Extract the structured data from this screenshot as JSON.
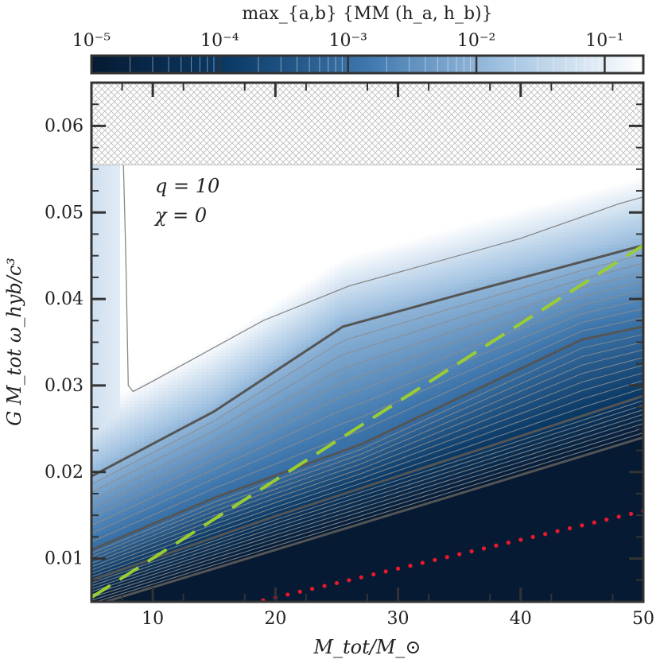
{
  "chart_data": {
    "type": "heatmap",
    "title": "",
    "xlabel": "M_tot/M_⊙",
    "ylabel": "G M_tot ω_hyb/c³",
    "xlim": [
      5,
      50
    ],
    "ylim": [
      0.005,
      0.065
    ],
    "xticks": [
      10,
      20,
      30,
      40,
      50
    ],
    "yticks": [
      0.01,
      0.02,
      0.03,
      0.04,
      0.05,
      0.06
    ],
    "xtick_labels": [
      "10",
      "20",
      "30",
      "40",
      "50"
    ],
    "ytick_labels": [
      "0.01",
      "0.02",
      "0.03",
      "0.04",
      "0.05",
      "0.06"
    ],
    "grid": false,
    "annotations": [
      "q = 10",
      "χ = 0"
    ],
    "colorbar": {
      "label": "max_{a,b} {MM (h_a, h_b)}",
      "scale": "log",
      "range": [
        1e-05,
        0.2
      ],
      "ticks": [
        "10⁻⁵",
        "10⁻⁴",
        "10⁻³",
        "10⁻²",
        "10⁻¹"
      ],
      "tick_values": [
        1e-05,
        0.0001,
        0.001,
        0.01,
        0.1
      ],
      "colors": [
        "#061a33",
        "#0b3a66",
        "#3f77ad",
        "#a4c4e2",
        "#ffffff"
      ]
    },
    "excluded_region": {
      "y_min": 0.0555,
      "y_max": 0.065,
      "pattern": "crosshatch"
    },
    "contours": [
      {
        "level": 0.1,
        "points": [
          [
            7.6,
            0.056
          ],
          [
            7.8,
            0.045
          ],
          [
            8.0,
            0.03
          ],
          [
            8.4,
            0.0293
          ],
          [
            10,
            0.0305
          ],
          [
            19,
            0.0375
          ],
          [
            26,
            0.0415
          ],
          [
            40,
            0.047
          ],
          [
            48,
            0.051
          ],
          [
            50,
            0.0518
          ]
        ]
      },
      {
        "level": 0.01,
        "points": [
          [
            5,
            0.0195
          ],
          [
            15,
            0.027
          ],
          [
            25.5,
            0.0368
          ],
          [
            35,
            0.0405
          ],
          [
            50,
            0.0462
          ]
        ]
      },
      {
        "level": 0.001,
        "points": [
          [
            5,
            0.011
          ],
          [
            15,
            0.017
          ],
          [
            27,
            0.0232
          ],
          [
            45,
            0.0353
          ],
          [
            50,
            0.0368
          ]
        ]
      },
      {
        "level": 0.0001,
        "points": [
          [
            5,
            0.0075
          ],
          [
            20,
            0.0149
          ],
          [
            36,
            0.0223
          ],
          [
            50,
            0.0288
          ]
        ]
      },
      {
        "level": 1e-05,
        "points": [
          [
            5,
            0.0045
          ],
          [
            20,
            0.011
          ],
          [
            35,
            0.0175
          ],
          [
            50,
            0.024
          ]
        ]
      }
    ],
    "series": [
      {
        "style": "dashed",
        "color": "#9acd32",
        "x": [
          5,
          50
        ],
        "y": [
          0.0055,
          0.0462
        ]
      },
      {
        "style": "dotted",
        "color": "#e8192c",
        "x": [
          17,
          50
        ],
        "y": [
          0.0045,
          0.0155
        ]
      }
    ]
  }
}
